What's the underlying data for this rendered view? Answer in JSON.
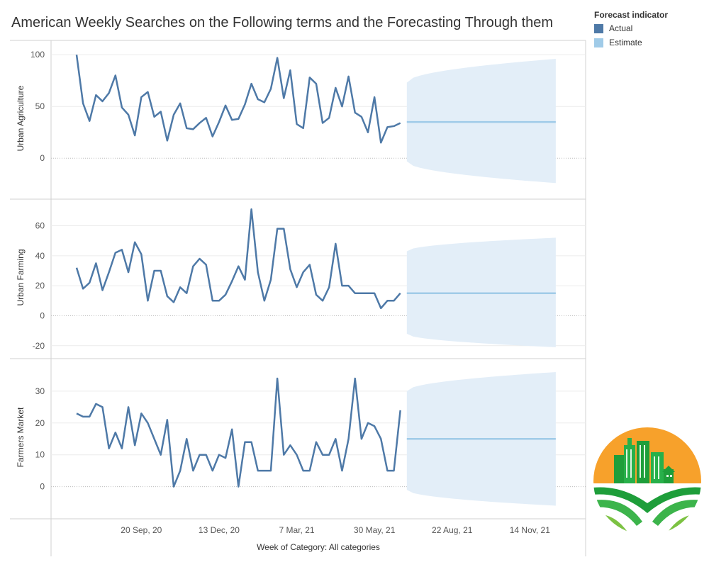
{
  "title": "American Weekly Searches on the Following terms and the Forecasting Through them",
  "legend": {
    "title": "Forecast indicator",
    "items": [
      {
        "label": "Actual",
        "color": "#4e79a7"
      },
      {
        "label": "Estimate",
        "color": "#a0cbe8"
      }
    ]
  },
  "colors": {
    "actual": "#4e79a7",
    "estimate": "#a0cbe8",
    "band": "#e3eef8"
  },
  "chart_data": [
    {
      "type": "line",
      "ylabel": "Urban Agriculture",
      "ylim": [
        -30,
        107
      ],
      "yticks": [
        0,
        50,
        100
      ],
      "actual_start": "2020-07-12",
      "actual": [
        100,
        53,
        36,
        61,
        55,
        63,
        80,
        49,
        42,
        22,
        59,
        64,
        40,
        45,
        17,
        42,
        53,
        29,
        28,
        34,
        39,
        21,
        35,
        51,
        37,
        38,
        52,
        72,
        57,
        54,
        67,
        97,
        58,
        85,
        33,
        29,
        78,
        72,
        34,
        39,
        68,
        50,
        79,
        44,
        40,
        25,
        59,
        15,
        30,
        31,
        34
      ],
      "forecast_start": "2021-07-04",
      "forecast_weeks": 24,
      "forecast_estimate": 35,
      "band_upper": [
        73,
        96
      ],
      "band_lower": [
        -3,
        -24
      ]
    },
    {
      "type": "line",
      "ylabel": "Urban Farming",
      "ylim": [
        -22,
        73
      ],
      "yticks": [
        -20,
        0,
        20,
        40,
        60
      ],
      "actual_start": "2020-07-12",
      "actual": [
        32,
        18,
        22,
        35,
        17,
        29,
        42,
        44,
        29,
        49,
        41,
        10,
        30,
        30,
        13,
        9,
        19,
        15,
        33,
        38,
        34,
        10,
        10,
        14,
        23,
        33,
        24,
        71,
        29,
        10,
        24,
        58,
        58,
        31,
        19,
        29,
        34,
        14,
        10,
        19,
        48,
        20,
        20,
        15,
        15,
        15,
        15,
        5,
        10,
        10,
        15
      ],
      "forecast_start": "2021-07-04",
      "forecast_weeks": 24,
      "forecast_estimate": 15,
      "band_upper": [
        43,
        52
      ],
      "band_lower": [
        -12,
        -21
      ]
    },
    {
      "type": "line",
      "ylabel": "Farmers Market",
      "ylim": [
        -7,
        38
      ],
      "yticks": [
        0,
        10,
        20,
        30
      ],
      "actual_start": "2020-07-12",
      "actual": [
        23,
        22,
        22,
        26,
        25,
        12,
        17,
        12,
        25,
        13,
        23,
        20,
        15,
        10,
        21,
        0,
        5,
        15,
        5,
        10,
        10,
        5,
        10,
        9,
        18,
        0,
        14,
        14,
        5,
        5,
        5,
        34,
        10,
        13,
        10,
        5,
        5,
        14,
        10,
        10,
        15,
        5,
        15,
        34,
        15,
        20,
        19,
        15,
        5,
        5,
        24
      ],
      "forecast_start": "2021-07-04",
      "forecast_weeks": 24,
      "forecast_estimate": 15,
      "band_upper": [
        30,
        36
      ],
      "band_lower": [
        -1,
        -6
      ]
    }
  ],
  "x_axis": {
    "label": "Week of Category: All categories",
    "ticks": [
      {
        "date": "2020-09-20",
        "label": "20 Sep, 20"
      },
      {
        "date": "2020-12-13",
        "label": "13 Dec, 20"
      },
      {
        "date": "2021-03-07",
        "label": "7 Mar, 21"
      },
      {
        "date": "2021-05-30",
        "label": "30 May, 21"
      },
      {
        "date": "2021-08-22",
        "label": "22 Aug, 21"
      },
      {
        "date": "2021-11-14",
        "label": "14 Nov, 21"
      }
    ]
  },
  "logo": {
    "name": "urban-farm-logo"
  }
}
